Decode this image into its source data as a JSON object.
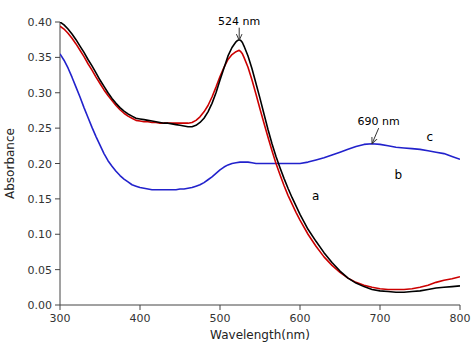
{
  "chart_data": {
    "type": "line",
    "xlabel": "Wavelength(nm)",
    "ylabel": "Absorbance",
    "xlim": [
      300,
      800
    ],
    "ylim": [
      0,
      0.4
    ],
    "xticks": [
      300,
      400,
      500,
      600,
      700,
      800
    ],
    "yticks": [
      {
        "value": 0,
        "label": "0.00"
      },
      0.05,
      {
        "value": 0.1,
        "label": "0.10"
      },
      0.15,
      {
        "value": 0.2,
        "label": "0.20"
      },
      0.25,
      {
        "value": 0.3,
        "label": "0.30"
      },
      0.35,
      {
        "value": 0.4,
        "label": "0.40"
      }
    ],
    "grid": false,
    "series": [
      {
        "color": "#000000",
        "x": [
          300,
          305,
          310,
          315,
          320,
          325,
          330,
          335,
          340,
          345,
          350,
          355,
          360,
          365,
          370,
          375,
          380,
          385,
          390,
          395,
          400,
          405,
          410,
          415,
          420,
          425,
          430,
          435,
          440,
          445,
          450,
          455,
          460,
          465,
          470,
          475,
          480,
          485,
          490,
          495,
          500,
          505,
          510,
          515,
          520,
          522,
          524,
          526,
          528,
          530,
          535,
          540,
          545,
          550,
          555,
          560,
          565,
          570,
          575,
          580,
          585,
          590,
          595,
          600,
          610,
          620,
          630,
          640,
          650,
          660,
          670,
          680,
          690,
          700,
          710,
          720,
          730,
          740,
          750,
          760,
          770,
          780,
          790,
          800
        ],
        "values": [
          0.4,
          0.396,
          0.39,
          0.383,
          0.375,
          0.366,
          0.357,
          0.347,
          0.338,
          0.328,
          0.318,
          0.309,
          0.3,
          0.292,
          0.285,
          0.279,
          0.274,
          0.27,
          0.267,
          0.264,
          0.263,
          0.262,
          0.261,
          0.26,
          0.259,
          0.258,
          0.257,
          0.257,
          0.256,
          0.255,
          0.254,
          0.253,
          0.252,
          0.252,
          0.254,
          0.258,
          0.264,
          0.273,
          0.285,
          0.3,
          0.318,
          0.335,
          0.352,
          0.364,
          0.372,
          0.374,
          0.375,
          0.374,
          0.371,
          0.366,
          0.352,
          0.334,
          0.313,
          0.292,
          0.27,
          0.248,
          0.228,
          0.21,
          0.194,
          0.179,
          0.165,
          0.152,
          0.14,
          0.128,
          0.107,
          0.09,
          0.074,
          0.06,
          0.048,
          0.038,
          0.031,
          0.026,
          0.022,
          0.02,
          0.019,
          0.018,
          0.018,
          0.019,
          0.02,
          0.022,
          0.024,
          0.025,
          0.026,
          0.027
        ]
      },
      {
        "color": "#cc0000",
        "x": [
          300,
          305,
          310,
          315,
          320,
          325,
          330,
          335,
          340,
          345,
          350,
          355,
          360,
          365,
          370,
          375,
          380,
          385,
          390,
          395,
          400,
          405,
          410,
          415,
          420,
          425,
          430,
          435,
          440,
          445,
          450,
          455,
          460,
          465,
          470,
          475,
          480,
          485,
          490,
          495,
          500,
          505,
          510,
          515,
          520,
          522,
          524,
          526,
          528,
          530,
          535,
          540,
          545,
          550,
          555,
          560,
          565,
          570,
          575,
          580,
          585,
          590,
          595,
          600,
          610,
          620,
          630,
          640,
          650,
          660,
          670,
          680,
          690,
          700,
          710,
          720,
          730,
          740,
          750,
          760,
          770,
          780,
          790,
          800
        ],
        "values": [
          0.394,
          0.39,
          0.384,
          0.377,
          0.369,
          0.36,
          0.351,
          0.341,
          0.332,
          0.322,
          0.313,
          0.304,
          0.296,
          0.289,
          0.282,
          0.276,
          0.271,
          0.267,
          0.264,
          0.261,
          0.26,
          0.259,
          0.259,
          0.258,
          0.258,
          0.257,
          0.257,
          0.257,
          0.257,
          0.257,
          0.257,
          0.257,
          0.257,
          0.258,
          0.261,
          0.266,
          0.273,
          0.282,
          0.294,
          0.308,
          0.323,
          0.336,
          0.347,
          0.354,
          0.358,
          0.359,
          0.36,
          0.358,
          0.355,
          0.35,
          0.336,
          0.318,
          0.298,
          0.277,
          0.257,
          0.237,
          0.218,
          0.2,
          0.184,
          0.169,
          0.155,
          0.143,
          0.131,
          0.12,
          0.1,
          0.083,
          0.068,
          0.056,
          0.046,
          0.038,
          0.032,
          0.028,
          0.025,
          0.023,
          0.022,
          0.022,
          0.022,
          0.023,
          0.025,
          0.028,
          0.032,
          0.035,
          0.037,
          0.04
        ]
      },
      {
        "color": "#2222cc",
        "x": [
          300,
          305,
          310,
          315,
          320,
          325,
          330,
          335,
          340,
          345,
          350,
          355,
          360,
          365,
          370,
          375,
          380,
          385,
          390,
          395,
          400,
          405,
          410,
          415,
          420,
          425,
          430,
          435,
          440,
          445,
          450,
          455,
          460,
          465,
          470,
          475,
          480,
          485,
          490,
          495,
          500,
          505,
          510,
          515,
          520,
          525,
          530,
          535,
          540,
          545,
          550,
          555,
          560,
          565,
          570,
          575,
          580,
          585,
          590,
          595,
          600,
          610,
          620,
          630,
          640,
          650,
          660,
          670,
          680,
          690,
          700,
          710,
          720,
          730,
          740,
          750,
          760,
          770,
          780,
          790,
          800
        ],
        "values": [
          0.355,
          0.346,
          0.335,
          0.322,
          0.308,
          0.294,
          0.279,
          0.265,
          0.251,
          0.238,
          0.226,
          0.214,
          0.204,
          0.196,
          0.189,
          0.183,
          0.178,
          0.174,
          0.17,
          0.168,
          0.166,
          0.165,
          0.164,
          0.163,
          0.163,
          0.163,
          0.163,
          0.163,
          0.163,
          0.163,
          0.164,
          0.164,
          0.165,
          0.166,
          0.168,
          0.17,
          0.173,
          0.177,
          0.181,
          0.186,
          0.191,
          0.195,
          0.198,
          0.2,
          0.201,
          0.202,
          0.202,
          0.202,
          0.201,
          0.2,
          0.2,
          0.2,
          0.2,
          0.2,
          0.2,
          0.2,
          0.2,
          0.2,
          0.2,
          0.2,
          0.2,
          0.202,
          0.205,
          0.208,
          0.212,
          0.216,
          0.22,
          0.224,
          0.227,
          0.228,
          0.227,
          0.225,
          0.223,
          0.222,
          0.221,
          0.22,
          0.218,
          0.216,
          0.214,
          0.21,
          0.206
        ]
      }
    ],
    "annotations": [
      {
        "text": "524 nm",
        "x": 524,
        "y": 0.392,
        "arrow_to": [
          524,
          0.374
        ]
      },
      {
        "text": "690 nm",
        "x": 672,
        "y": 0.25,
        "arrow_to": [
          690,
          0.228
        ]
      },
      {
        "text": "a",
        "x": 615,
        "y": 0.148
      },
      {
        "text": "b",
        "x": 718,
        "y": 0.178
      },
      {
        "text": "c",
        "x": 758,
        "y": 0.232
      }
    ]
  }
}
